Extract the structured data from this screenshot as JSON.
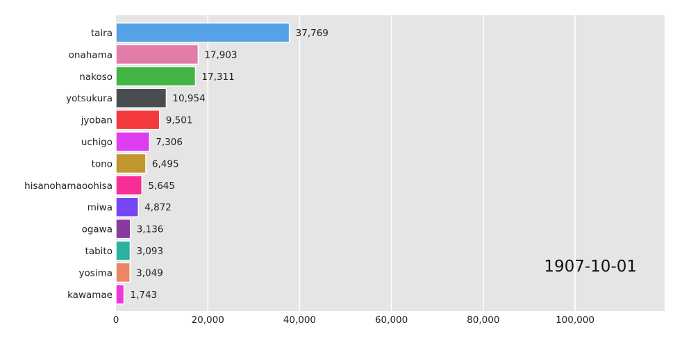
{
  "chart_data": {
    "type": "bar",
    "orientation": "horizontal",
    "categories": [
      "taira",
      "onahama",
      "nakoso",
      "yotsukura",
      "jyoban",
      "uchigo",
      "tono",
      "hisanohamaoohisa",
      "miwa",
      "ogawa",
      "tabito",
      "yosima",
      "kawamae"
    ],
    "values": [
      37769,
      17903,
      17311,
      10954,
      9501,
      7306,
      6495,
      5645,
      4872,
      3136,
      3093,
      3049,
      1743
    ],
    "value_labels": [
      "37,769",
      "17,903",
      "17,311",
      "10,954",
      "9,501",
      "7,306",
      "6,495",
      "5,645",
      "4,872",
      "3,136",
      "3,093",
      "3,049",
      "1,743"
    ],
    "colors": [
      "#55a3e6",
      "#e17ca9",
      "#43b544",
      "#4a4d4f",
      "#f43a3c",
      "#dd3ff0",
      "#c2962f",
      "#f72e97",
      "#7546f4",
      "#8a39a0",
      "#2db19f",
      "#ec8666",
      "#ee37d6"
    ],
    "xlim": [
      0,
      120000
    ],
    "xticks": [
      0,
      20000,
      40000,
      60000,
      80000,
      100000
    ],
    "xtick_labels": [
      "0",
      "20,000",
      "40,000",
      "60,000",
      "80,000",
      "100,000"
    ],
    "grid": true,
    "background": "#e5e5e5",
    "annotation": "1907-10-01",
    "title": "",
    "xlabel": "",
    "ylabel": ""
  }
}
